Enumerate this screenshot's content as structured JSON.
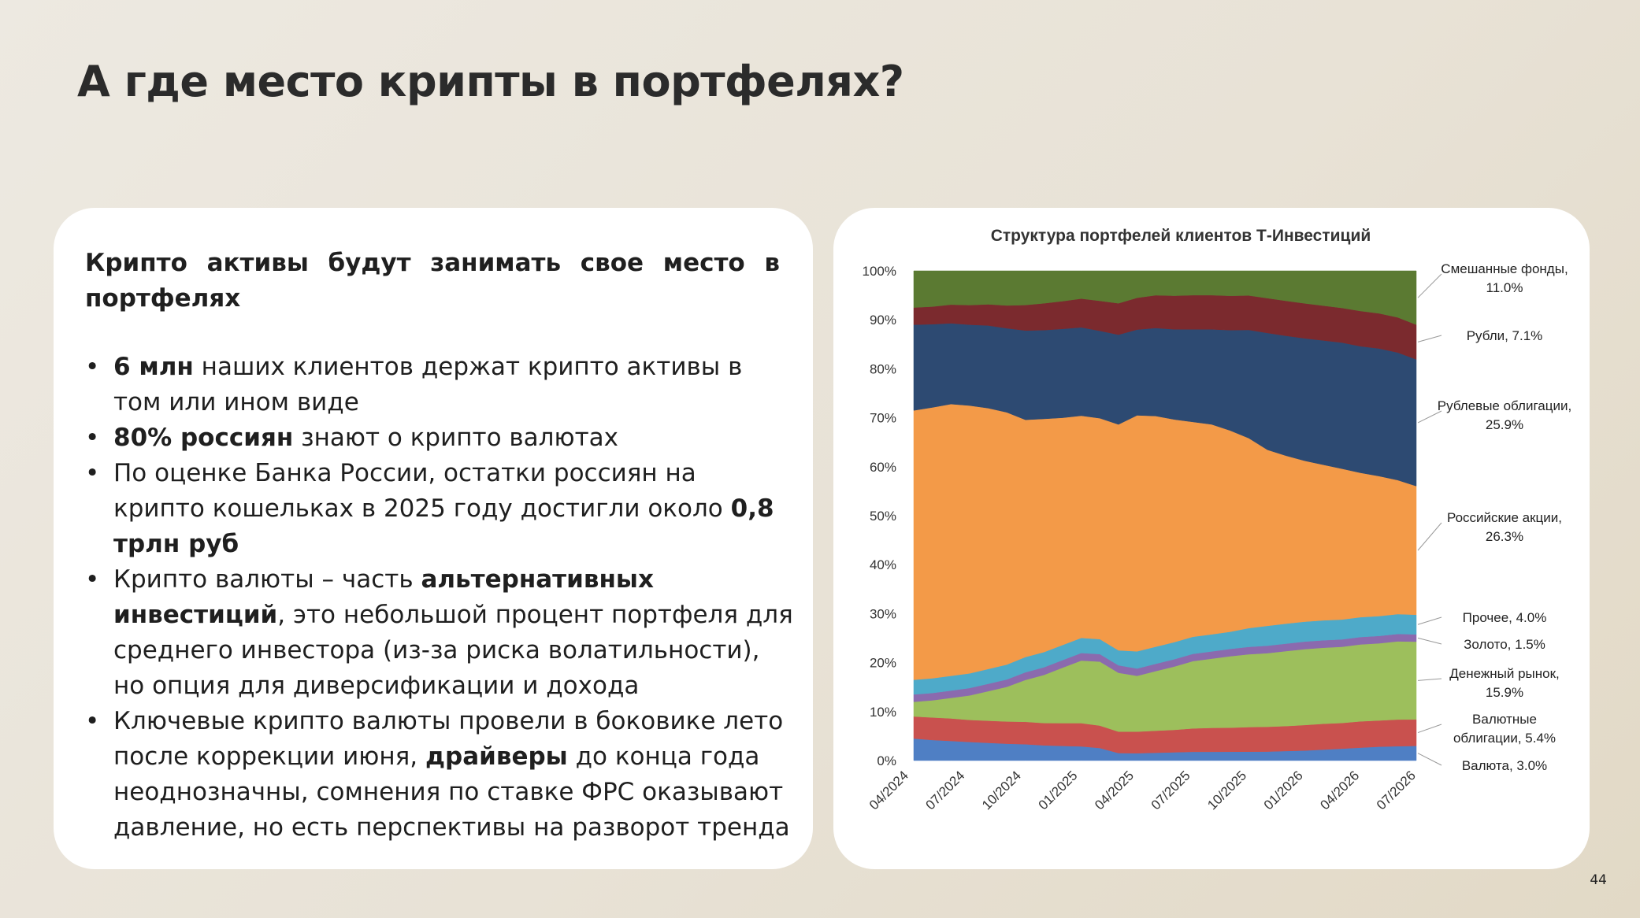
{
  "slide": {
    "title": "А где место крипты в портфелях?",
    "page_number": "44"
  },
  "text_panel": {
    "heading": "Крипто активы будут занимать свое место в портфелях",
    "bullets": [
      [
        {
          "text": "6 млн",
          "bold": true
        },
        {
          "text": " наших клиентов держат крипто активы в том или ином виде",
          "bold": false
        }
      ],
      [
        {
          "text": "80% россиян",
          "bold": true
        },
        {
          "text": " знают о крипто валютах",
          "bold": false
        }
      ],
      [
        {
          "text": "По оценке Банка России, остатки россиян на крипто кошельках в 2025 году достигли около ",
          "bold": false
        },
        {
          "text": "0,8 трлн руб",
          "bold": true
        }
      ],
      [
        {
          "text": "Крипто валюты – часть ",
          "bold": false
        },
        {
          "text": "альтернативных инвестиций",
          "bold": true
        },
        {
          "text": ", это небольшой процент портфеля для среднего инвестора (из-за риска волатильности), но опция для диверсификации и дохода",
          "bold": false
        }
      ],
      [
        {
          "text": "Ключевые крипто валюты провели в боковике лето после коррекции июня, ",
          "bold": false
        },
        {
          "text": "драйверы",
          "bold": true
        },
        {
          "text": " до конца года неоднозначны, сомнения по ставке ФРС оказывают давление, но есть перспективы на разворот тренда",
          "bold": false
        }
      ]
    ]
  },
  "chart_data": {
    "type": "area",
    "stacked": true,
    "normalized_percent": true,
    "title": "Структура портфелей клиентов Т-Инвестиций",
    "xlabel": "",
    "ylabel": "",
    "ylim": [
      0,
      100
    ],
    "y_ticks": [
      "0%",
      "10%",
      "20%",
      "30%",
      "40%",
      "50%",
      "60%",
      "70%",
      "80%",
      "90%",
      "100%"
    ],
    "x_tick_labels": [
      "04/2024",
      "07/2024",
      "10/2024",
      "01/2025",
      "04/2025",
      "07/2025",
      "10/2025",
      "01/2026",
      "04/2026",
      "07/2026"
    ],
    "grid": false,
    "legend": "inline labels at right edge",
    "x": [
      "04/2024",
      "05/2024",
      "06/2024",
      "07/2024",
      "08/2024",
      "09/2024",
      "10/2024",
      "11/2024",
      "12/2024",
      "01/2025",
      "02/2025",
      "03/2025",
      "04/2025",
      "05/2025",
      "06/2025",
      "07/2025",
      "08/2025",
      "09/2025",
      "10/2025",
      "11/2025",
      "12/2025",
      "01/2026",
      "02/2026",
      "03/2026",
      "04/2026",
      "05/2026",
      "06/2026",
      "07/2026"
    ],
    "series": [
      {
        "name": "Валюта",
        "color": "#4f7fc4",
        "final_label": "Валюта, 3.0%",
        "values": [
          4.5,
          4.2,
          4.0,
          3.8,
          3.6,
          3.4,
          3.2,
          3.0,
          2.9,
          2.8,
          2.5,
          1.5,
          1.5,
          1.6,
          1.7,
          1.8,
          1.8,
          1.8,
          1.8,
          1.8,
          1.9,
          2.0,
          2.2,
          2.4,
          2.6,
          2.8,
          2.9,
          3.0
        ]
      },
      {
        "name": "Валютные облигации",
        "color": "#c9514e",
        "final_label": "Валютные облигации, 5.4%",
        "values": [
          4.5,
          4.6,
          4.6,
          4.5,
          4.5,
          4.5,
          4.4,
          4.4,
          4.5,
          4.6,
          4.5,
          4.3,
          4.4,
          4.5,
          4.6,
          4.8,
          4.9,
          4.9,
          5.0,
          5.0,
          5.0,
          5.1,
          5.2,
          5.2,
          5.3,
          5.3,
          5.4,
          5.4
        ]
      },
      {
        "name": "Денежный рынок",
        "color": "#9dbf5c",
        "final_label": "Денежный рынок, 15.9%",
        "values": [
          3.0,
          3.5,
          4.2,
          5.0,
          6.0,
          7.0,
          8.2,
          9.5,
          11.0,
          12.4,
          12.8,
          11.8,
          11.4,
          12.2,
          13.0,
          13.8,
          14.2,
          14.6,
          14.8,
          14.8,
          15.0,
          15.2,
          15.3,
          15.4,
          15.5,
          15.6,
          15.8,
          15.9
        ]
      },
      {
        "name": "Золото",
        "color": "#8b6aae",
        "final_label": "Золото, 1.5%",
        "values": [
          1.5,
          1.5,
          1.5,
          1.5,
          1.5,
          1.5,
          1.5,
          1.5,
          1.5,
          1.5,
          1.5,
          1.5,
          1.5,
          1.5,
          1.5,
          1.5,
          1.5,
          1.5,
          1.5,
          1.5,
          1.5,
          1.5,
          1.5,
          1.5,
          1.5,
          1.5,
          1.5,
          1.5
        ]
      },
      {
        "name": "Прочее",
        "color": "#4eaac9",
        "final_label": "Прочее, 4.0%",
        "values": [
          3.0,
          3.0,
          3.0,
          3.0,
          3.0,
          3.0,
          3.0,
          3.0,
          3.0,
          3.0,
          3.0,
          3.0,
          3.5,
          3.5,
          3.5,
          3.5,
          3.5,
          3.5,
          3.8,
          4.0,
          4.0,
          4.0,
          4.0,
          4.0,
          4.0,
          4.0,
          4.0,
          4.0
        ]
      },
      {
        "name": "Российские акции",
        "color": "#f39a48",
        "final_label": "Российские акции, 26.3%",
        "values": [
          55.0,
          55.3,
          55.5,
          54.7,
          53.0,
          51.0,
          46.5,
          46.0,
          45.0,
          44.0,
          44.2,
          45.3,
          48.2,
          47.2,
          45.7,
          44.1,
          43.1,
          41.1,
          38.6,
          35.4,
          33.6,
          32.2,
          31.3,
          30.5,
          29.1,
          28.3,
          27.1,
          26.3
        ]
      },
      {
        "name": "Рублевые облигации",
        "color": "#2d4a72",
        "final_label": "Рублевые облигации, 25.9%",
        "values": [
          17.5,
          17.0,
          16.5,
          16.5,
          16.8,
          17.0,
          17.5,
          17.5,
          17.6,
          17.5,
          17.5,
          18.0,
          17.5,
          18.0,
          18.5,
          19.0,
          19.5,
          20.5,
          22.0,
          23.5,
          24.0,
          24.5,
          25.0,
          25.5,
          25.5,
          25.8,
          25.8,
          25.9
        ]
      },
      {
        "name": "Рубли",
        "color": "#7b2a2e",
        "final_label": "Рубли, 7.1%",
        "values": [
          3.5,
          3.6,
          3.8,
          4.0,
          4.3,
          4.6,
          5.0,
          5.3,
          5.5,
          5.7,
          6.0,
          6.3,
          6.5,
          6.7,
          6.9,
          7.0,
          7.0,
          7.0,
          7.0,
          7.0,
          7.0,
          7.0,
          7.0,
          7.0,
          7.1,
          7.1,
          7.1,
          7.1
        ]
      },
      {
        "name": "Смешанные фонды",
        "color": "#5b7a32",
        "final_label": "Смешанные фонды, 11.0%",
        "values": [
          7.5,
          7.3,
          6.9,
          7.0,
          6.8,
          7.0,
          6.7,
          6.4,
          6.0,
          5.5,
          6.0,
          6.5,
          5.5,
          5.0,
          5.1,
          5.0,
          5.0,
          5.1,
          5.0,
          5.5,
          6.0,
          6.5,
          7.0,
          7.5,
          8.1,
          8.6,
          9.4,
          11.0
        ]
      }
    ]
  }
}
